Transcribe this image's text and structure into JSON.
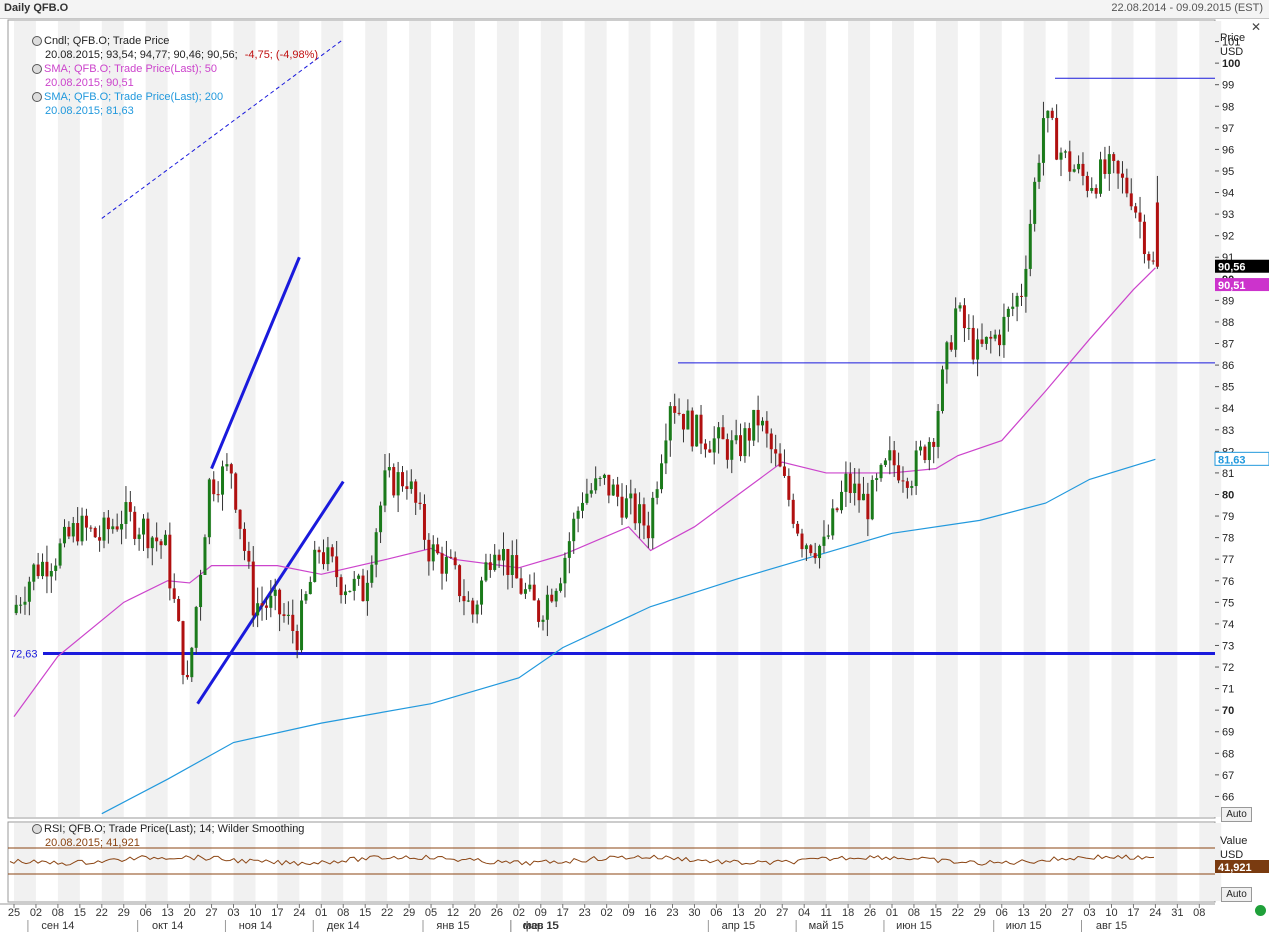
{
  "window": {
    "title": "Daily QFB.O",
    "date_range": "22.08.2014 - 09.09.2015 (EST)",
    "close_glyph": "✕"
  },
  "legend": {
    "candle_title": "Cndl; QFB.O; Trade Price",
    "candle_values": "20.08.2015; 93,54; 94,77; 90,46; 90,56;",
    "candle_change": "-4,75; (-4,98%)",
    "sma50_title": "SMA; QFB.O; Trade Price(Last);  50",
    "sma50_values": "20.08.2015; 90,51",
    "sma200_title": "SMA; QFB.O; Trade Price(Last);  200",
    "sma200_values": "20.08.2015; 81,63",
    "rsi_title": "RSI; QFB.O; Trade Price(Last);  14; Wilder Smoothing",
    "rsi_values": "20.08.2015; 41,921"
  },
  "price_axis": {
    "title1": "Price",
    "title2": "USD",
    "auto": "Auto",
    "labels": [
      {
        "v": "101",
        "b": false
      },
      {
        "v": "100",
        "b": true
      },
      {
        "v": "99",
        "b": false
      },
      {
        "v": "98",
        "b": false
      },
      {
        "v": "97",
        "b": false
      },
      {
        "v": "96",
        "b": false
      },
      {
        "v": "95",
        "b": false
      },
      {
        "v": "94",
        "b": false
      },
      {
        "v": "93",
        "b": false
      },
      {
        "v": "92",
        "b": false
      },
      {
        "v": "91",
        "b": false
      },
      {
        "v": "90",
        "b": true
      },
      {
        "v": "89",
        "b": false
      },
      {
        "v": "88",
        "b": false
      },
      {
        "v": "87",
        "b": false
      },
      {
        "v": "86",
        "b": false
      },
      {
        "v": "85",
        "b": false
      },
      {
        "v": "84",
        "b": false
      },
      {
        "v": "83",
        "b": false
      },
      {
        "v": "82",
        "b": false
      },
      {
        "v": "81",
        "b": false
      },
      {
        "v": "80",
        "b": true
      },
      {
        "v": "79",
        "b": false
      },
      {
        "v": "78",
        "b": false
      },
      {
        "v": "77",
        "b": false
      },
      {
        "v": "76",
        "b": false
      },
      {
        "v": "75",
        "b": false
      },
      {
        "v": "74",
        "b": false
      },
      {
        "v": "73",
        "b": false
      },
      {
        "v": "72",
        "b": false
      },
      {
        "v": "71",
        "b": false
      },
      {
        "v": "70",
        "b": true
      },
      {
        "v": "69",
        "b": false
      },
      {
        "v": "68",
        "b": false
      },
      {
        "v": "67",
        "b": false
      },
      {
        "v": "66",
        "b": false
      }
    ],
    "last_price_tag": "90,56",
    "sma50_tag": "90,51",
    "sma200_tag": "81,63",
    "hline_label": "72,63"
  },
  "rsi_axis": {
    "title1": "Value",
    "title2": "USD",
    "auto": "Auto",
    "tag": "41,921"
  },
  "colors": {
    "candle_up": "#1a7a1a",
    "candle_down": "#b01010",
    "sma50": "#cc44cc",
    "sma200": "#2299dd",
    "trend": "#1a1adc",
    "rsi": "#8b4513",
    "last_tag": "#000000",
    "sma50_tag": "#cc33cc",
    "sma200_tag": "#ffffff",
    "rsi_tag": "#7a3b10"
  },
  "time_axis": {
    "days": [
      "25",
      "02",
      "08",
      "15",
      "22",
      "29",
      "06",
      "13",
      "20",
      "27",
      "03",
      "10",
      "17",
      "24",
      "01",
      "08",
      "15",
      "22",
      "29",
      "05",
      "12",
      "20",
      "26",
      "02",
      "09",
      "17",
      "23",
      "02",
      "09",
      "16",
      "23",
      "30",
      "06",
      "13",
      "20",
      "27",
      "04",
      "11",
      "18",
      "26",
      "01",
      "08",
      "15",
      "22",
      "29",
      "06",
      "13",
      "20",
      "27",
      "03",
      "10",
      "17",
      "24",
      "31",
      "08"
    ],
    "months": [
      {
        "label": "сен 14",
        "day": "08"
      },
      {
        "label": "окт 14",
        "day": "13"
      },
      {
        "label": "ноя 14",
        "day": "10"
      },
      {
        "label": "дек 14",
        "day": "08"
      },
      {
        "label": "янв 15",
        "day": "12"
      },
      {
        "label": "фев 15",
        "day": "09"
      },
      {
        "label": "мар 15",
        "day": "09"
      },
      {
        "label": "апр 15",
        "day": "13"
      },
      {
        "label": "май 15",
        "day": "11"
      },
      {
        "label": "июн 15",
        "day": "08"
      },
      {
        "label": "июл 15",
        "day": "13"
      },
      {
        "label": "авг 15",
        "day": "10"
      }
    ]
  },
  "chart_data": {
    "type": "candlestick",
    "title": "Daily QFB.O",
    "ylabel": "Price USD",
    "ylim": [
      65,
      102
    ],
    "last_candle": {
      "date": "20.08.2015",
      "open": 93.54,
      "high": 94.77,
      "low": 90.46,
      "close": 90.56,
      "change": -4.75,
      "change_pct": -4.98
    },
    "close_path": [
      {
        "x": "25",
        "y": 74.5
      },
      {
        "x": "02",
        "y": 76.5
      },
      {
        "x": "08",
        "y": 77.2
      },
      {
        "x": "15",
        "y": 78.5
      },
      {
        "x": "22",
        "y": 78.0
      },
      {
        "x": "29",
        "y": 79.0
      },
      {
        "x": "06",
        "y": 78.5
      },
      {
        "x": "13",
        "y": 77.5
      },
      {
        "x": "20",
        "y": 71.0
      },
      {
        "x": "27",
        "y": 80.5
      },
      {
        "x": "03",
        "y": 81.2
      },
      {
        "x": "10",
        "y": 75.0
      },
      {
        "x": "17",
        "y": 74.8
      },
      {
        "x": "24",
        "y": 73.5
      },
      {
        "x": "01",
        "y": 77.5
      },
      {
        "x": "08",
        "y": 76.0
      },
      {
        "x": "15",
        "y": 75.5
      },
      {
        "x": "22",
        "y": 80.5
      },
      {
        "x": "29",
        "y": 80.8
      },
      {
        "x": "05",
        "y": 77.5
      },
      {
        "x": "12",
        "y": 76.5
      },
      {
        "x": "20",
        "y": 74.5
      },
      {
        "x": "26",
        "y": 78.0
      },
      {
        "x": "02",
        "y": 76.0
      },
      {
        "x": "09",
        "y": 74.5
      },
      {
        "x": "17",
        "y": 76.5
      },
      {
        "x": "23",
        "y": 80.0
      },
      {
        "x": "02",
        "y": 80.5
      },
      {
        "x": "09",
        "y": 79.5
      },
      {
        "x": "16",
        "y": 78.5
      },
      {
        "x": "23",
        "y": 84.5
      },
      {
        "x": "30",
        "y": 83.0
      },
      {
        "x": "06",
        "y": 82.5
      },
      {
        "x": "13",
        "y": 82.0
      },
      {
        "x": "20",
        "y": 83.5
      },
      {
        "x": "27",
        "y": 81.0
      },
      {
        "x": "04",
        "y": 78.0
      },
      {
        "x": "11",
        "y": 77.5
      },
      {
        "x": "18",
        "y": 80.5
      },
      {
        "x": "26",
        "y": 79.5
      },
      {
        "x": "01",
        "y": 81.5
      },
      {
        "x": "08",
        "y": 81.0
      },
      {
        "x": "15",
        "y": 83.0
      },
      {
        "x": "22",
        "y": 88.5
      },
      {
        "x": "29",
        "y": 86.5
      },
      {
        "x": "06",
        "y": 87.5
      },
      {
        "x": "13",
        "y": 89.5
      },
      {
        "x": "20",
        "y": 97.5
      },
      {
        "x": "27",
        "y": 95.5
      },
      {
        "x": "03",
        "y": 94.5
      },
      {
        "x": "10",
        "y": 95.0
      },
      {
        "x": "17",
        "y": 94.0
      },
      {
        "x": "24",
        "y": 90.56
      }
    ],
    "series": [
      {
        "name": "SMA 50",
        "last": 90.51,
        "values": [
          {
            "x": "25",
            "y": 69.7
          },
          {
            "x": "08",
            "y": 72.5
          },
          {
            "x": "29",
            "y": 75.0
          },
          {
            "x": "13",
            "y": 76.0
          },
          {
            "x": "20",
            "y": 75.9
          },
          {
            "x": "27",
            "y": 76.7
          },
          {
            "x": "17",
            "y": 76.7
          },
          {
            "x": "01",
            "y": 76.3
          },
          {
            "x": "22",
            "y": 77.0
          },
          {
            "x": "05",
            "y": 77.5
          },
          {
            "x": "12",
            "y": 77.0
          },
          {
            "x": "02",
            "y": 76.6
          },
          {
            "x": "17",
            "y": 77.2
          },
          {
            "x": "09",
            "y": 78.5
          },
          {
            "x": "16",
            "y": 77.4
          },
          {
            "x": "30",
            "y": 78.5
          },
          {
            "x": "13",
            "y": 80.0
          },
          {
            "x": "27",
            "y": 81.5
          },
          {
            "x": "11",
            "y": 81.0
          },
          {
            "x": "01",
            "y": 81.0
          },
          {
            "x": "15",
            "y": 81.2
          },
          {
            "x": "22",
            "y": 81.8
          },
          {
            "x": "06",
            "y": 82.5
          },
          {
            "x": "20",
            "y": 84.8
          },
          {
            "x": "03",
            "y": 87.2
          },
          {
            "x": "17",
            "y": 89.5
          },
          {
            "x": "24",
            "y": 90.51
          }
        ]
      },
      {
        "name": "SMA 200",
        "last": 81.63,
        "values": [
          {
            "x": "22",
            "y": 65.2
          },
          {
            "x": "13",
            "y": 66.8
          },
          {
            "x": "03",
            "y": 68.5
          },
          {
            "x": "01",
            "y": 69.4
          },
          {
            "x": "05",
            "y": 70.3
          },
          {
            "x": "02",
            "y": 71.5
          },
          {
            "x": "17",
            "y": 72.9
          },
          {
            "x": "16",
            "y": 74.8
          },
          {
            "x": "13",
            "y": 76.1
          },
          {
            "x": "04",
            "y": 77.0
          },
          {
            "x": "01",
            "y": 78.2
          },
          {
            "x": "29",
            "y": 78.8
          },
          {
            "x": "20",
            "y": 79.6
          },
          {
            "x": "03",
            "y": 80.7
          },
          {
            "x": "24",
            "y": 81.63
          }
        ]
      },
      {
        "name": "RSI 14",
        "last": 41.921,
        "values": []
      }
    ],
    "annotations": [
      {
        "type": "hline",
        "y": 72.63,
        "label": "72,63"
      },
      {
        "type": "hline",
        "y": 99.3
      },
      {
        "type": "hline",
        "y": 86.1
      },
      {
        "type": "trendline",
        "from": {
          "x": "20",
          "y": 70.3
        },
        "to": {
          "x": "08",
          "y": 80.6
        }
      },
      {
        "type": "trendline",
        "from": {
          "x": "27",
          "y": 81.2
        },
        "to": {
          "x": "24",
          "y": 91.0
        }
      },
      {
        "type": "trendline_dashed",
        "from": {
          "x": "22",
          "y": 92.8
        },
        "to": {
          "x": "08",
          "y": 101.1
        }
      }
    ]
  }
}
